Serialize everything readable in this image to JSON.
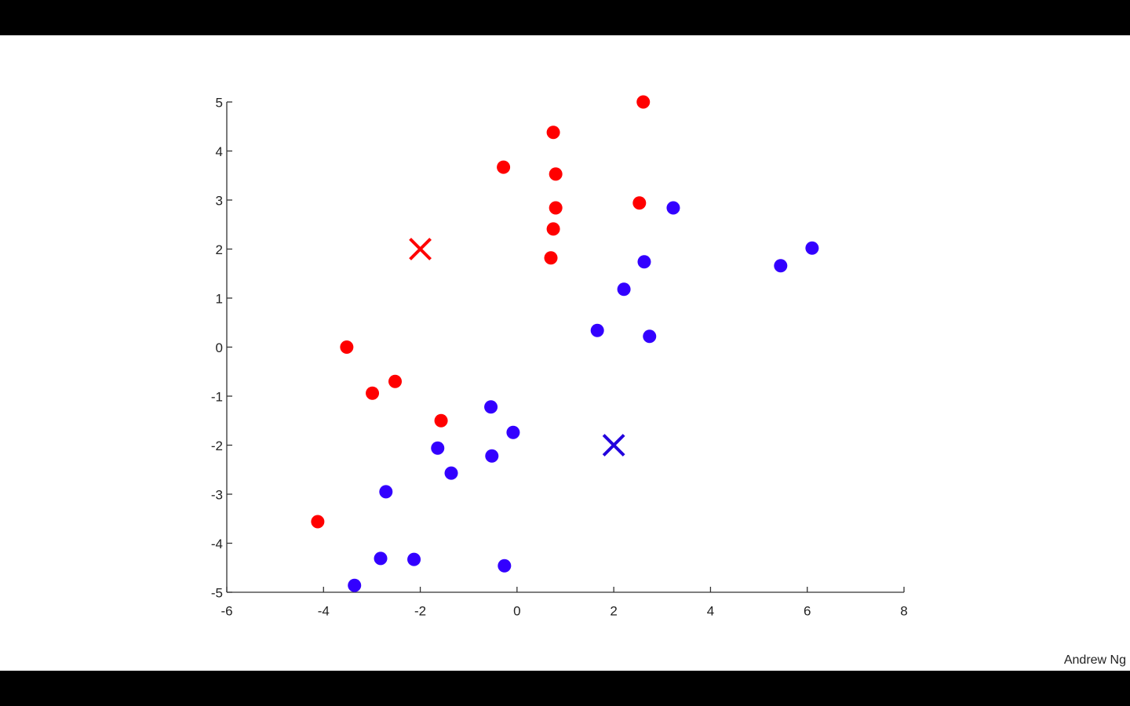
{
  "chart_data": {
    "type": "scatter",
    "xlim": [
      -6,
      8
    ],
    "xticks": [
      -6,
      -4,
      -2,
      0,
      2,
      4,
      6,
      8
    ],
    "ylim": [
      -5,
      5
    ],
    "yticks": [
      -5,
      -4,
      -3,
      -2,
      -1,
      0,
      1,
      2,
      3,
      4,
      5
    ],
    "series": [
      {
        "color": "#ff0000",
        "marker": "circle",
        "x": [
          2.61,
          0.75,
          -0.28,
          0.8,
          0.8,
          2.53,
          0.75,
          0.7,
          -3.52,
          -2.52,
          -2.99,
          -1.57,
          -4.12
        ],
        "values": [
          5.0,
          4.38,
          3.67,
          3.53,
          2.84,
          2.94,
          2.41,
          1.82,
          0.0,
          -0.7,
          -0.94,
          -1.5,
          -3.56
        ]
      },
      {
        "color": "#3300ff",
        "marker": "circle",
        "x": [
          3.23,
          6.1,
          5.45,
          2.63,
          2.21,
          1.66,
          2.74,
          -0.54,
          -0.08,
          -1.64,
          -0.52,
          -1.36,
          -2.71,
          -2.82,
          -2.13,
          -0.26,
          -3.36
        ],
        "values": [
          2.84,
          2.02,
          1.66,
          1.74,
          1.18,
          0.34,
          0.22,
          -1.22,
          -1.74,
          -2.06,
          -2.22,
          -2.57,
          -2.95,
          -4.31,
          -4.33,
          -4.46,
          -4.86
        ]
      },
      {
        "color": "#ff0000",
        "marker": "x",
        "x": [
          -2
        ],
        "values": [
          2
        ]
      },
      {
        "color": "#2200dd",
        "marker": "x",
        "x": [
          2
        ],
        "values": [
          -2
        ]
      }
    ]
  },
  "footer": "Andrew Ng"
}
